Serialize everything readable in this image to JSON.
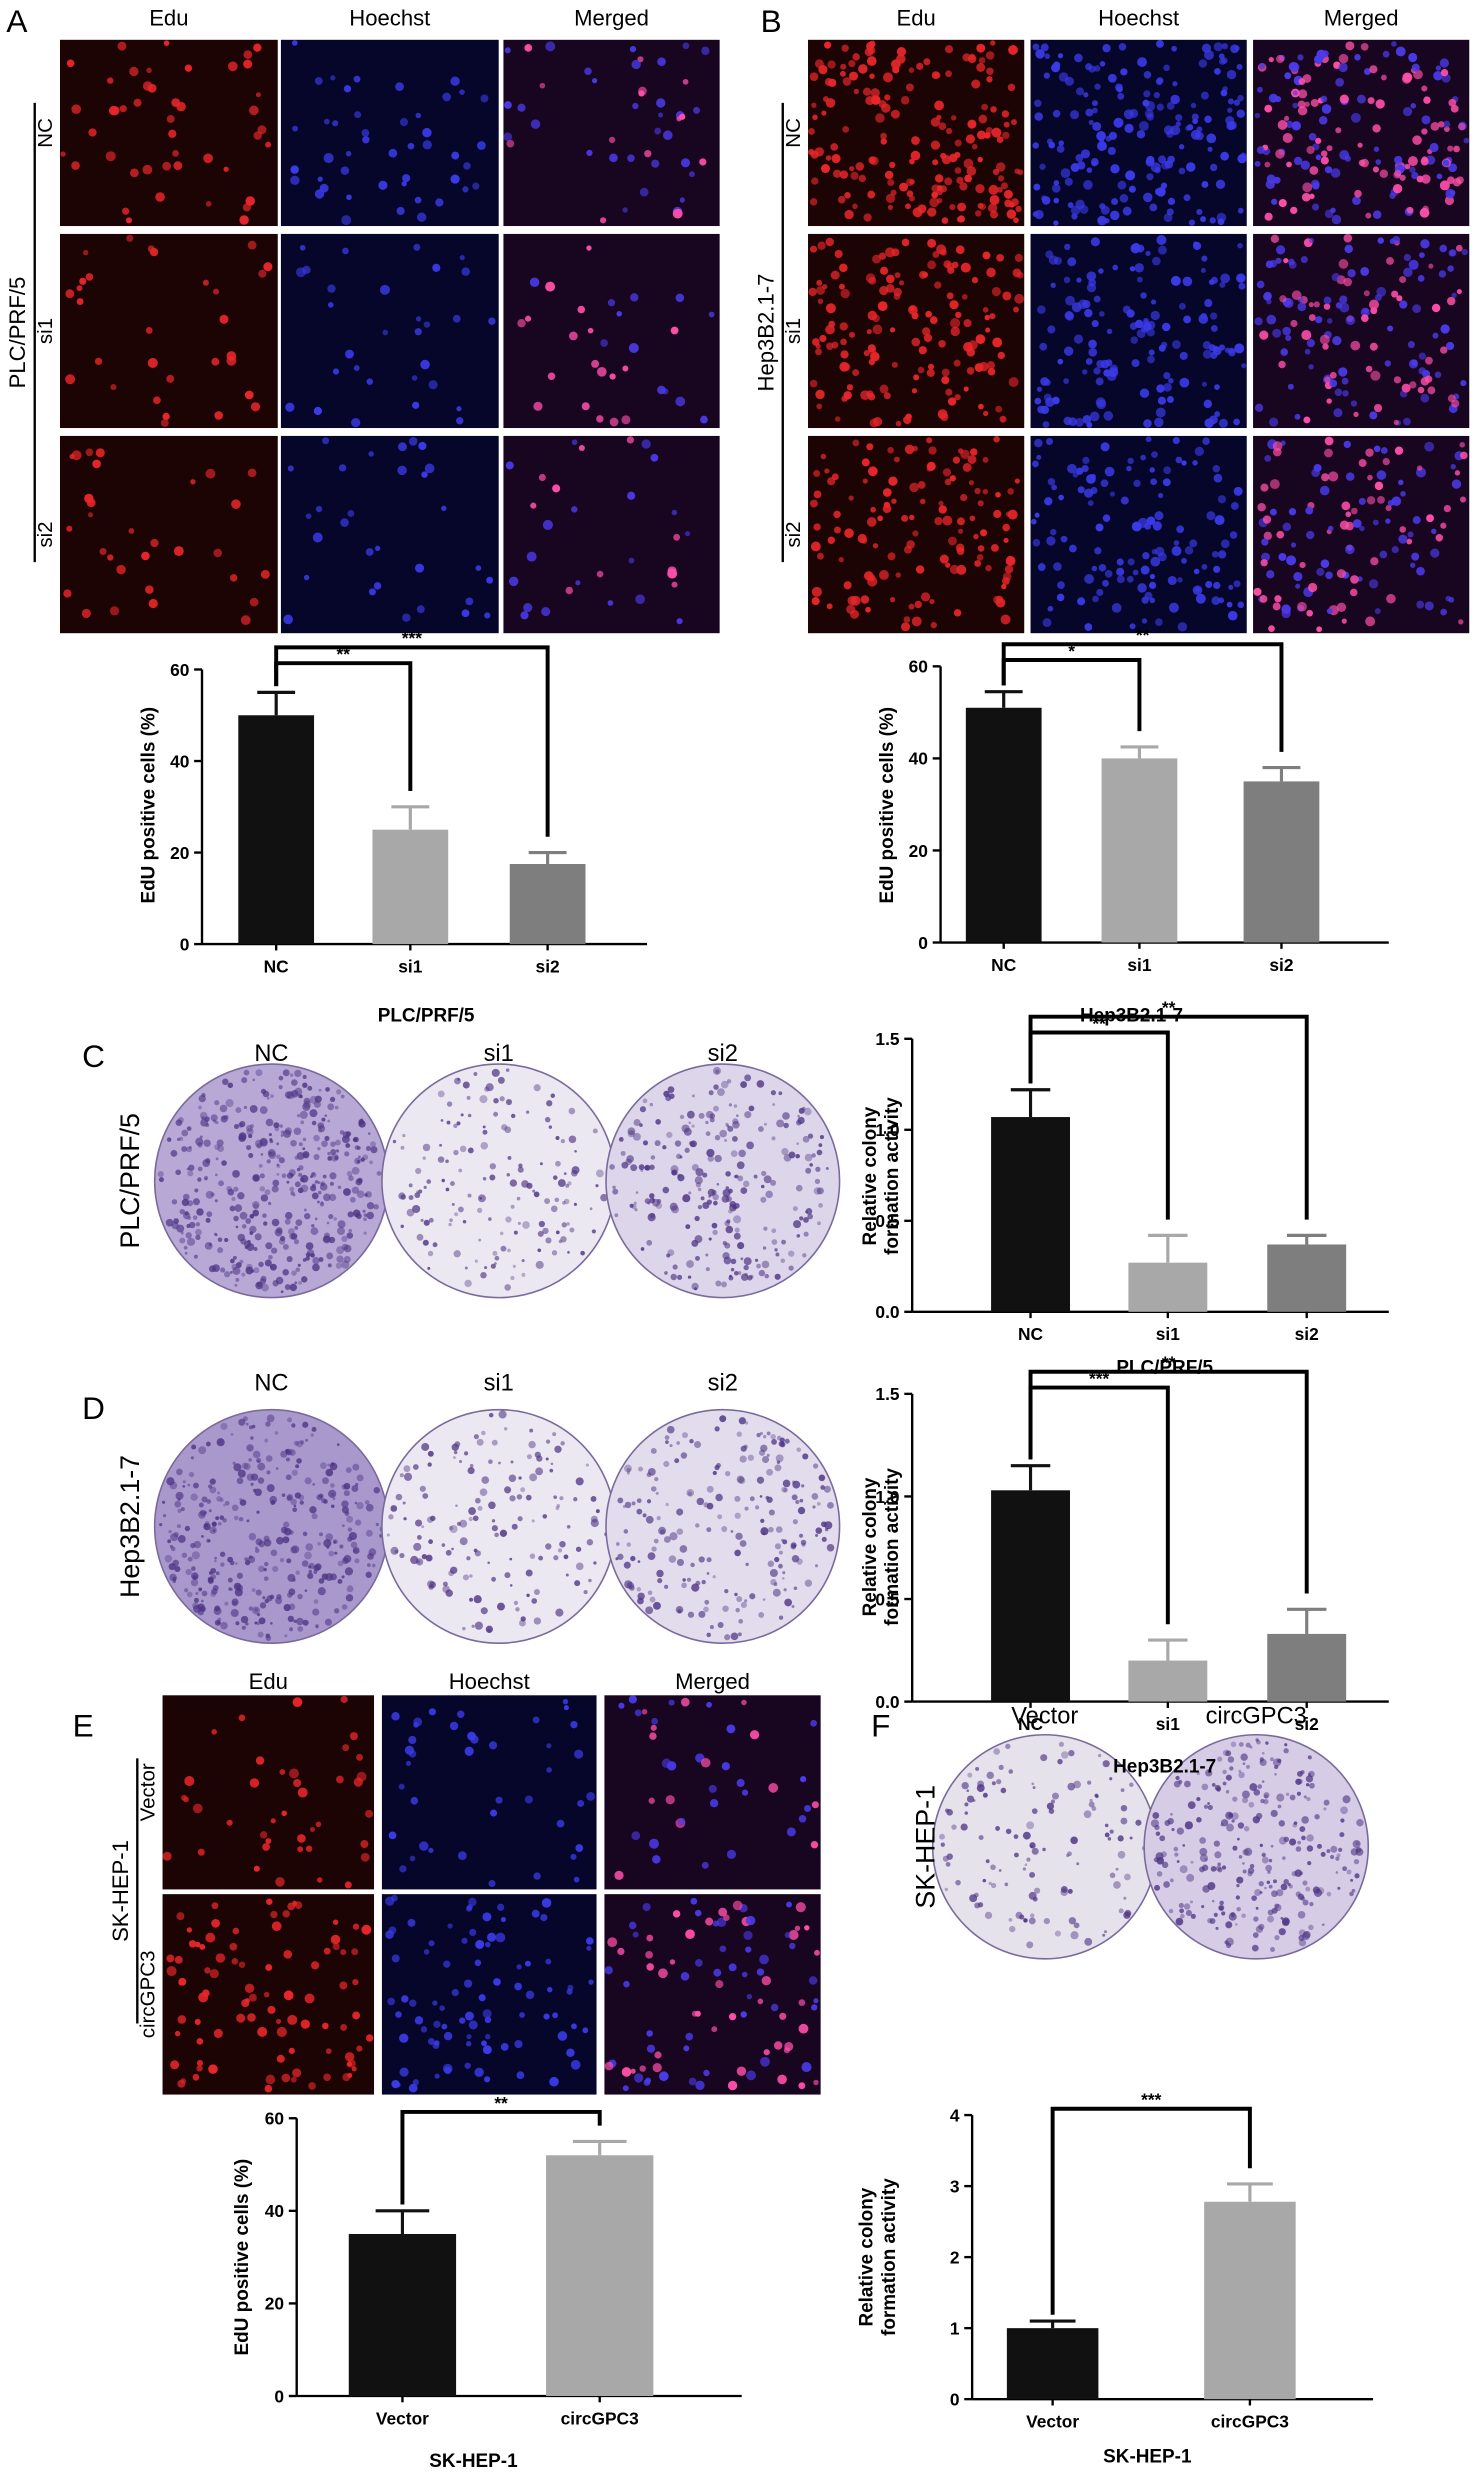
{
  "panels": [
    {
      "label": "A",
      "columns": [
        "Edu",
        "Hoechst",
        "Merged"
      ],
      "rows": [
        "NC",
        "si1",
        "si2"
      ],
      "cell_line": "PLC/PRF/5"
    },
    {
      "label": "B",
      "columns": [
        "Edu",
        "Hoechst",
        "Merged"
      ],
      "rows": [
        "NC",
        "si1",
        "si2"
      ],
      "cell_line": "Hep3B2.1-7"
    },
    {
      "label": "C",
      "columns": [
        "NC",
        "si1",
        "si2"
      ],
      "cell_line": "PLC/PRF/5"
    },
    {
      "label": "D",
      "columns": [
        "NC",
        "si1",
        "si2"
      ],
      "cell_line": "Hep3B2.1-7"
    },
    {
      "label": "E",
      "columns": [
        "Edu",
        "Hoechst",
        "Merged"
      ],
      "rows": [
        "Vector",
        "circGPC3"
      ],
      "cell_line": "SK-HEP-1"
    },
    {
      "label": "F",
      "columns": [
        "Vector",
        "circGPC3"
      ],
      "cell_line": "SK-HEP-1"
    }
  ],
  "chart_data": [
    {
      "type": "bar",
      "ylabel": [
        "EdU positive cells (%)"
      ],
      "xlabel": "PLC/PRF/5",
      "categories": [
        "NC",
        "si1",
        "si2"
      ],
      "values": [
        50,
        25,
        17.5
      ],
      "errors": [
        5,
        5,
        2.5
      ],
      "colors": [
        "#111111",
        "#a8a8a8",
        "#7e7e7e"
      ],
      "ylim": [
        0,
        60
      ],
      "yticks": [
        0,
        20,
        40,
        60
      ],
      "significance": [
        "**",
        "***"
      ]
    },
    {
      "type": "bar",
      "ylabel": [
        "EdU positive cells (%)"
      ],
      "xlabel": "Hep3B2.1-7",
      "categories": [
        "NC",
        "si1",
        "si2"
      ],
      "values": [
        51,
        40,
        35
      ],
      "errors": [
        3.5,
        2.5,
        3
      ],
      "colors": [
        "#111111",
        "#a8a8a8",
        "#7e7e7e"
      ],
      "ylim": [
        0,
        60
      ],
      "yticks": [
        0,
        20,
        40,
        60
      ],
      "significance": [
        "*",
        "**"
      ]
    },
    {
      "type": "bar",
      "ylabel": [
        "Relative colony",
        "formation activity"
      ],
      "xlabel": "PLC/PRF/5",
      "categories": [
        "NC",
        "si1",
        "si2"
      ],
      "values": [
        1.07,
        0.27,
        0.37
      ],
      "errors": [
        0.15,
        0.15,
        0.05
      ],
      "colors": [
        "#111111",
        "#a8a8a8",
        "#7e7e7e"
      ],
      "ylim": [
        0,
        1.5
      ],
      "yticks": [
        {
          "value": 0,
          "label": "0.0"
        },
        0.5,
        {
          "value": 1,
          "label": "1.0"
        },
        1.5
      ],
      "significance": [
        "**",
        "**"
      ]
    },
    {
      "type": "bar",
      "ylabel": [
        "Relative colony",
        "formation activity"
      ],
      "xlabel": "Hep3B2.1-7",
      "categories": [
        "NC",
        "si1",
        "si2"
      ],
      "values": [
        1.03,
        0.2,
        0.33
      ],
      "errors": [
        0.12,
        0.1,
        0.12
      ],
      "colors": [
        "#111111",
        "#a8a8a8",
        "#7e7e7e"
      ],
      "ylim": [
        0,
        1.5
      ],
      "yticks": [
        {
          "value": 0,
          "label": "0.0"
        },
        0.5,
        {
          "value": 1,
          "label": "1.0"
        },
        1.5
      ],
      "significance": [
        "***",
        "**"
      ]
    },
    {
      "type": "bar",
      "ylabel": [
        "EdU positive cells (%)"
      ],
      "xlabel": "SK-HEP-1",
      "categories": [
        "Vector",
        "circGPC3"
      ],
      "values": [
        35,
        52
      ],
      "errors": [
        5,
        3
      ],
      "colors": [
        "#111111",
        "#a8a8a8"
      ],
      "ylim": [
        0,
        60
      ],
      "yticks": [
        0,
        20,
        40,
        60
      ],
      "significance": [
        "**"
      ]
    },
    {
      "type": "bar",
      "ylabel": [
        "Relative colony",
        "formation activity"
      ],
      "xlabel": "SK-HEP-1",
      "categories": [
        "Vector",
        "circGPC3"
      ],
      "values": [
        1.0,
        2.78
      ],
      "errors": [
        0.1,
        0.25
      ],
      "colors": [
        "#111111",
        "#a8a8a8"
      ],
      "ylim": [
        0,
        4
      ],
      "yticks": [
        0,
        1,
        2,
        3,
        4
      ],
      "significance": [
        "***"
      ]
    }
  ]
}
